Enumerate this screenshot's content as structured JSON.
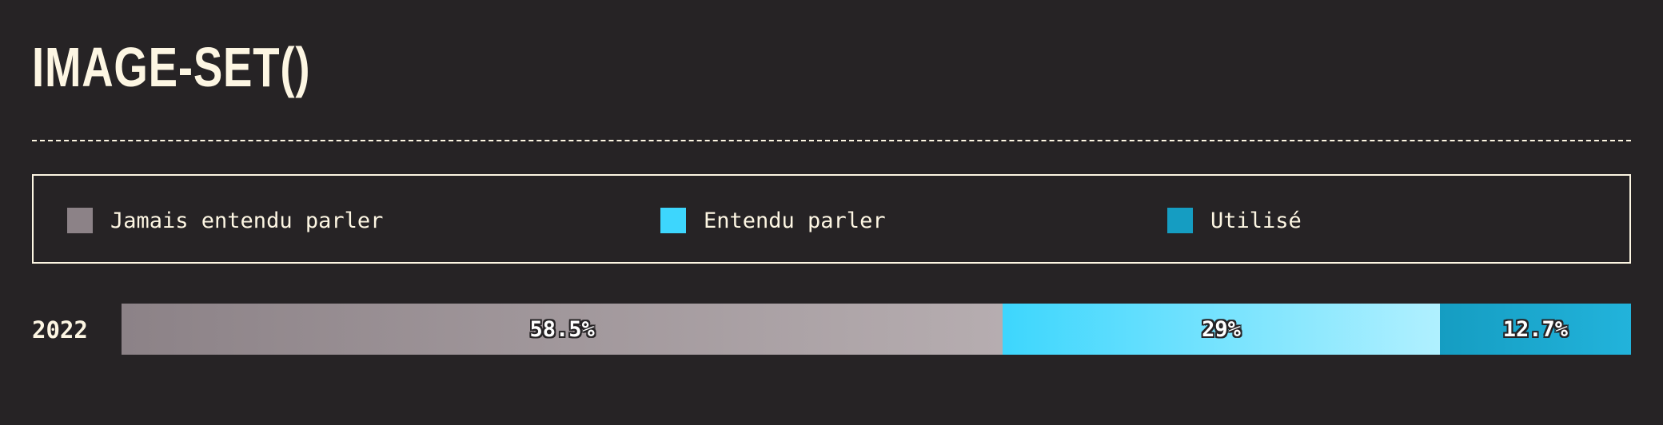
{
  "title": "IMAGE-SET()",
  "colors": {
    "background": "#262325",
    "text": "#fdf6e3",
    "never_heard": "#8c8287",
    "heard": "#3dd6fd",
    "used": "#159dc2"
  },
  "chart_data": {
    "type": "bar",
    "stacked": "percent",
    "orientation": "horizontal",
    "categories": [
      "2022"
    ],
    "series": [
      {
        "name": "Jamais entendu parler",
        "values": [
          58.5
        ],
        "label": "58.5%",
        "color": "#8c8287",
        "gradient_end": "#b6adb0"
      },
      {
        "name": "Entendu parler",
        "values": [
          29
        ],
        "label": "29%",
        "color": "#3dd6fd",
        "gradient_end": "#b0f0ff"
      },
      {
        "name": "Utilisé",
        "values": [
          12.7
        ],
        "label": "12.7%",
        "color": "#159dc2",
        "gradient_end": "#22b3db"
      }
    ],
    "legend_position": "top",
    "grid": false
  }
}
